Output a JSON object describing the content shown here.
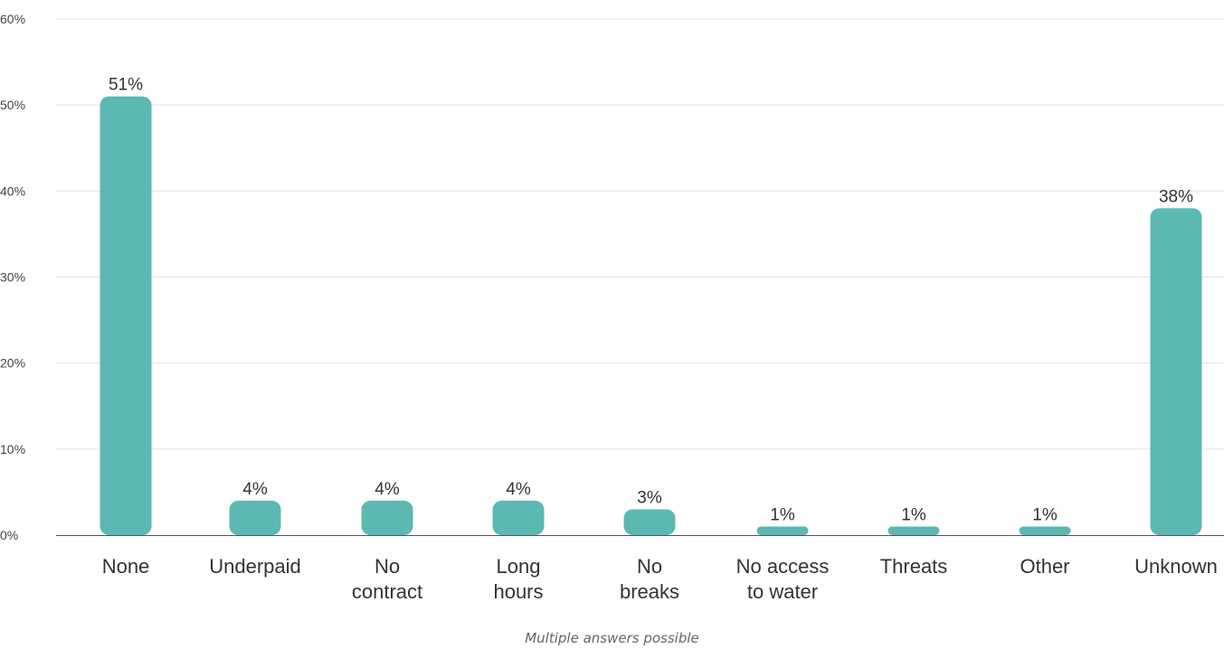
{
  "chart_data": {
    "type": "bar",
    "categories": [
      "None",
      "Underpaid",
      "No contract",
      "Long hours",
      "No breaks",
      "No access to water",
      "Threats",
      "Other",
      "Unknown"
    ],
    "category_lines": [
      [
        "None"
      ],
      [
        "Underpaid"
      ],
      [
        "No",
        "contract"
      ],
      [
        "Long",
        "hours"
      ],
      [
        "No",
        "breaks"
      ],
      [
        "No access",
        "to water"
      ],
      [
        "Threats"
      ],
      [
        "Other"
      ],
      [
        "Unknown"
      ]
    ],
    "values": [
      51,
      4,
      4,
      4,
      3,
      1,
      1,
      1,
      38
    ],
    "value_labels": [
      "51%",
      "4%",
      "4%",
      "4%",
      "3%",
      "1%",
      "1%",
      "1%",
      "38%"
    ],
    "yticks": [
      0,
      10,
      20,
      30,
      40,
      50,
      60
    ],
    "ytick_labels": [
      "0%",
      "10%",
      "20%",
      "30%",
      "40%",
      "50%",
      "60%"
    ],
    "ylim": [
      0,
      60
    ],
    "grid": true,
    "legend": "none",
    "note": "Multiple answers possible",
    "colors": {
      "bar": "#5bb8b2",
      "grid": "#e3e3e3",
      "axis": "#555555",
      "text": "#333333",
      "tick_text": "#444444"
    }
  }
}
